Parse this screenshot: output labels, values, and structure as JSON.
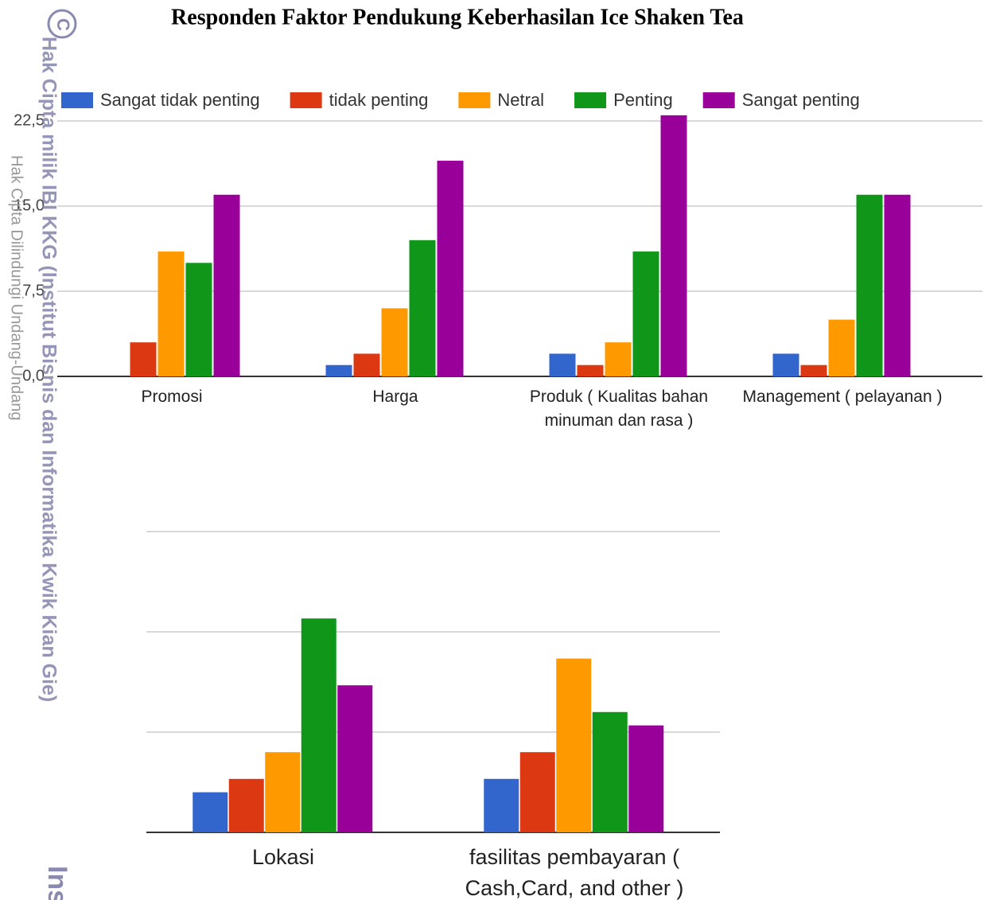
{
  "watermark": {
    "symbol": "C",
    "owner": "Hak Cipta milik IBI KKG (Institut Bisnis dan Informatika Kwik Kian Gie)",
    "protected": "Hak Cipta Dilindungi Undang-Undang",
    "corner": "Ins"
  },
  "chart_data": [
    {
      "type": "bar",
      "title": "Responden Faktor Pendukung Keberhasilan Ice Shaken Tea",
      "categories": [
        "Promosi",
        "Harga",
        "Produk ( Kualitas bahan minuman dan rasa )",
        "Management ( pelayanan )"
      ],
      "series": [
        {
          "name": "Sangat tidak penting",
          "color": "#3366cc",
          "values": [
            0,
            1,
            2,
            2
          ]
        },
        {
          "name": "tidak penting",
          "color": "#dc3912",
          "values": [
            3,
            2,
            1,
            1
          ]
        },
        {
          "name": "Netral",
          "color": "#ff9900",
          "values": [
            11,
            6,
            3,
            5
          ]
        },
        {
          "name": "Penting",
          "color": "#109618",
          "values": [
            10,
            12,
            11,
            16
          ]
        },
        {
          "name": "Sangat penting",
          "color": "#990099",
          "values": [
            16,
            19,
            23,
            16
          ]
        }
      ],
      "ylim": [
        0,
        22.5
      ],
      "yticks": [
        {
          "value": 0,
          "label": "0,0"
        },
        {
          "value": 7.5,
          "label": "7,5"
        },
        {
          "value": 15,
          "label": "15,0"
        },
        {
          "value": 22.5,
          "label": "22,5"
        }
      ],
      "grid": true,
      "legend": "top"
    },
    {
      "type": "bar",
      "categories": [
        "Lokasi",
        "fasilitas pembayaran ( Cash,Card, and other )"
      ],
      "series": [
        {
          "color": "#3366cc",
          "values": [
            3,
            4
          ]
        },
        {
          "color": "#dc3912",
          "values": [
            4,
            6
          ]
        },
        {
          "color": "#ff9900",
          "values": [
            6,
            13
          ]
        },
        {
          "color": "#109618",
          "values": [
            16,
            9
          ]
        },
        {
          "color": "#990099",
          "values": [
            11,
            8
          ]
        }
      ],
      "ylim": [
        0,
        22.5
      ],
      "yticks": [
        0,
        7.5,
        15,
        22.5
      ],
      "grid": true
    }
  ]
}
